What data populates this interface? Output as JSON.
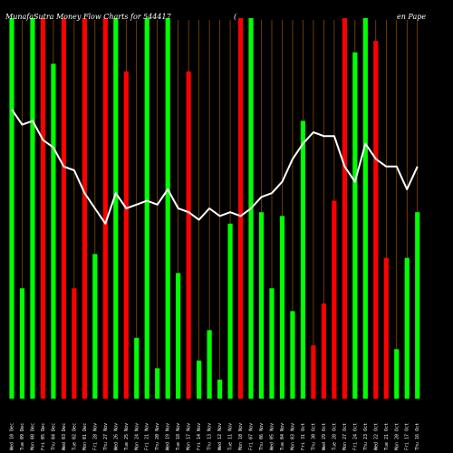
{
  "chart_data": {
    "type": "bar",
    "title_left": "MunafaSutra Money Flow Charts for 544417",
    "title_mid": "(",
    "title_right": "en Pape",
    "categories": [
      "Wed 10 Dec",
      "Tue 09 Dec",
      "Mon 08 Dec",
      "Fri 05 Dec",
      "Thu 04 Dec",
      "Wed 03 Dec",
      "Tue 02 Dec",
      "Mon 01 Dec",
      "Fri 28 Nov",
      "Thu 27 Nov",
      "Wed 26 Nov",
      "Tue 25 Nov",
      "Mon 24 Nov",
      "Fri 21 Nov",
      "Thu 20 Nov",
      "Wed 19 Nov",
      "Tue 18 Nov",
      "Mon 17 Nov",
      "Fri 14 Nov",
      "Thu 13 Nov",
      "Wed 12 Nov",
      "Tue 11 Nov",
      "Mon 10 Nov",
      "Fri 07 Nov",
      "Thu 06 Nov",
      "Wed 05 Nov",
      "Tue 04 Nov",
      "Mon 03 Nov",
      "Fri 31 Oct",
      "Thu 30 Oct",
      "Wed 29 Oct",
      "Tue 28 Oct",
      "Mon 27 Oct",
      "Fri 24 Oct",
      "Thu 23 Oct",
      "Wed 22 Oct",
      "Tue 21 Oct",
      "Mon 20 Oct",
      "Fri 17 Oct",
      "Thu 16 Oct"
    ],
    "bars": [
      {
        "value": 100,
        "color": "green"
      },
      {
        "value": 29,
        "color": "green"
      },
      {
        "value": 100,
        "color": "green"
      },
      {
        "value": 100,
        "color": "red"
      },
      {
        "value": 88,
        "color": "green"
      },
      {
        "value": 100,
        "color": "red"
      },
      {
        "value": 29,
        "color": "red"
      },
      {
        "value": 100,
        "color": "red"
      },
      {
        "value": 38,
        "color": "green"
      },
      {
        "value": 100,
        "color": "red"
      },
      {
        "value": 100,
        "color": "green"
      },
      {
        "value": 86,
        "color": "red"
      },
      {
        "value": 16,
        "color": "green"
      },
      {
        "value": 100,
        "color": "green"
      },
      {
        "value": 8,
        "color": "green"
      },
      {
        "value": 100,
        "color": "green"
      },
      {
        "value": 33,
        "color": "green"
      },
      {
        "value": 86,
        "color": "red"
      },
      {
        "value": 10,
        "color": "green"
      },
      {
        "value": 18,
        "color": "green"
      },
      {
        "value": 5,
        "color": "green"
      },
      {
        "value": 46,
        "color": "green"
      },
      {
        "value": 100,
        "color": "red"
      },
      {
        "value": 100,
        "color": "green"
      },
      {
        "value": 49,
        "color": "green"
      },
      {
        "value": 29,
        "color": "green"
      },
      {
        "value": 48,
        "color": "green"
      },
      {
        "value": 23,
        "color": "green"
      },
      {
        "value": 73,
        "color": "green"
      },
      {
        "value": 14,
        "color": "red"
      },
      {
        "value": 25,
        "color": "red"
      },
      {
        "value": 52,
        "color": "red"
      },
      {
        "value": 100,
        "color": "red"
      },
      {
        "value": 91,
        "color": "green"
      },
      {
        "value": 100,
        "color": "green"
      },
      {
        "value": 94,
        "color": "red"
      },
      {
        "value": 37,
        "color": "red"
      },
      {
        "value": 13,
        "color": "green"
      },
      {
        "value": 37,
        "color": "green"
      },
      {
        "value": 49,
        "color": "green"
      }
    ],
    "line": [
      76,
      72,
      73,
      68,
      66,
      61,
      60,
      54,
      50,
      46,
      54,
      50,
      51,
      52,
      51,
      55,
      50,
      49,
      47,
      50,
      48,
      49,
      48,
      50,
      53,
      54,
      57,
      63,
      67,
      70,
      69,
      69,
      61,
      57,
      67,
      63,
      61,
      61,
      55,
      61
    ],
    "ylim": [
      0,
      100
    ],
    "grid": true,
    "colors": {
      "background": "#000000",
      "up_bar": "#00ff00",
      "down_bar": "#ff0000",
      "line": "#ffffff",
      "grid": "#b36200",
      "text": "#ffffff"
    }
  }
}
